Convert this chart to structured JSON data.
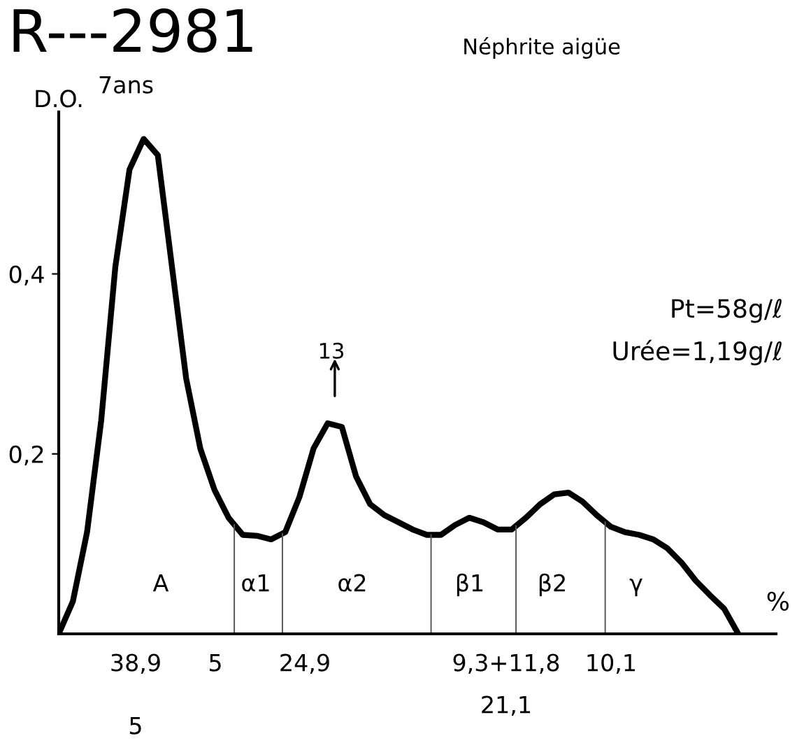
{
  "chart_data": {
    "type": "line",
    "title": "R---2981",
    "subtitle": "Néphrite aigüe",
    "ylabel": "D.O.",
    "xlabel": "%",
    "color": "#000000",
    "categories": [
      null,
      null,
      null,
      null,
      null,
      null,
      null,
      null,
      null,
      null,
      null,
      null,
      null,
      null,
      null,
      null,
      null,
      null,
      null,
      null,
      null,
      null,
      null,
      null,
      null,
      null,
      null,
      null,
      null,
      null,
      null,
      null,
      null,
      null,
      null,
      null,
      null,
      null,
      null,
      null,
      null,
      null,
      null,
      null,
      null,
      null,
      null,
      null,
      null
    ],
    "values": [
      0,
      0.036,
      0.113,
      0.237,
      0.408,
      0.516,
      0.55,
      0.532,
      0.408,
      0.284,
      0.206,
      0.16,
      0.129,
      0.11,
      0.109,
      0.105,
      0.113,
      0.152,
      0.206,
      0.234,
      0.23,
      0.175,
      0.144,
      0.132,
      0.124,
      0.116,
      0.11,
      0.11,
      0.121,
      0.129,
      0.124,
      0.116,
      0.116,
      0.129,
      0.144,
      0.155,
      0.157,
      0.147,
      0.132,
      0.119,
      0.113,
      0.11,
      0.105,
      0.095,
      0.079,
      0.059,
      0.043,
      0.028,
      0
    ],
    "ylim": [
      0,
      0.58
    ],
    "yticks": [
      {
        "value": 0.2,
        "label": "0,2"
      },
      {
        "value": 0.4,
        "label": "0,4"
      }
    ],
    "tick_labels": "y",
    "grid": false,
    "annotations": [
      "7ans",
      "Pt=58g/ℓ",
      "Urée=1,19g/ℓ",
      "13",
      "A",
      "α1",
      "α2",
      "β1",
      "β2",
      "γ",
      "38,9",
      "5",
      "24,9",
      "9,3+11,8",
      "21,1",
      "10,1",
      "5"
    ]
  }
}
